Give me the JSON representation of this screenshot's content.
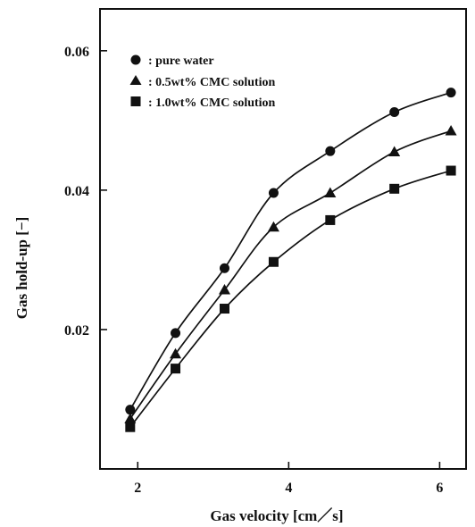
{
  "chart_data": {
    "type": "line",
    "xlabel": "Gas velocity [cm／s]",
    "ylabel": "Gas hold-up [−]",
    "xlim": [
      1.5,
      6.35
    ],
    "ylim": [
      0.0,
      0.066
    ],
    "x_ticks": [
      2,
      4,
      6
    ],
    "y_ticks": [
      0.02,
      0.04,
      0.06
    ],
    "x_tick_labels": [
      "2",
      "4",
      "6"
    ],
    "y_tick_labels": [
      "0.02",
      "0.04",
      "0.06"
    ],
    "grid": false,
    "legend_position": "top-left",
    "series": [
      {
        "name": ": pure water",
        "marker": "circle",
        "x": [
          1.9,
          2.5,
          3.15,
          3.8,
          4.55,
          5.4,
          6.15
        ],
        "y": [
          0.0085,
          0.0195,
          0.0288,
          0.0396,
          0.0456,
          0.0512,
          0.054
        ]
      },
      {
        "name": ": 0.5wt% CMC solution",
        "marker": "triangle",
        "x": [
          1.9,
          2.5,
          3.15,
          3.8,
          4.55,
          5.4,
          6.15
        ],
        "y": [
          0.0072,
          0.0165,
          0.0257,
          0.0347,
          0.0396,
          0.0455,
          0.0485
        ]
      },
      {
        "name": ": 1.0wt% CMC solution",
        "marker": "square",
        "x": [
          1.9,
          2.5,
          3.15,
          3.8,
          4.55,
          5.4,
          6.15
        ],
        "y": [
          0.006,
          0.0144,
          0.023,
          0.0297,
          0.0357,
          0.0402,
          0.0428
        ]
      }
    ]
  }
}
